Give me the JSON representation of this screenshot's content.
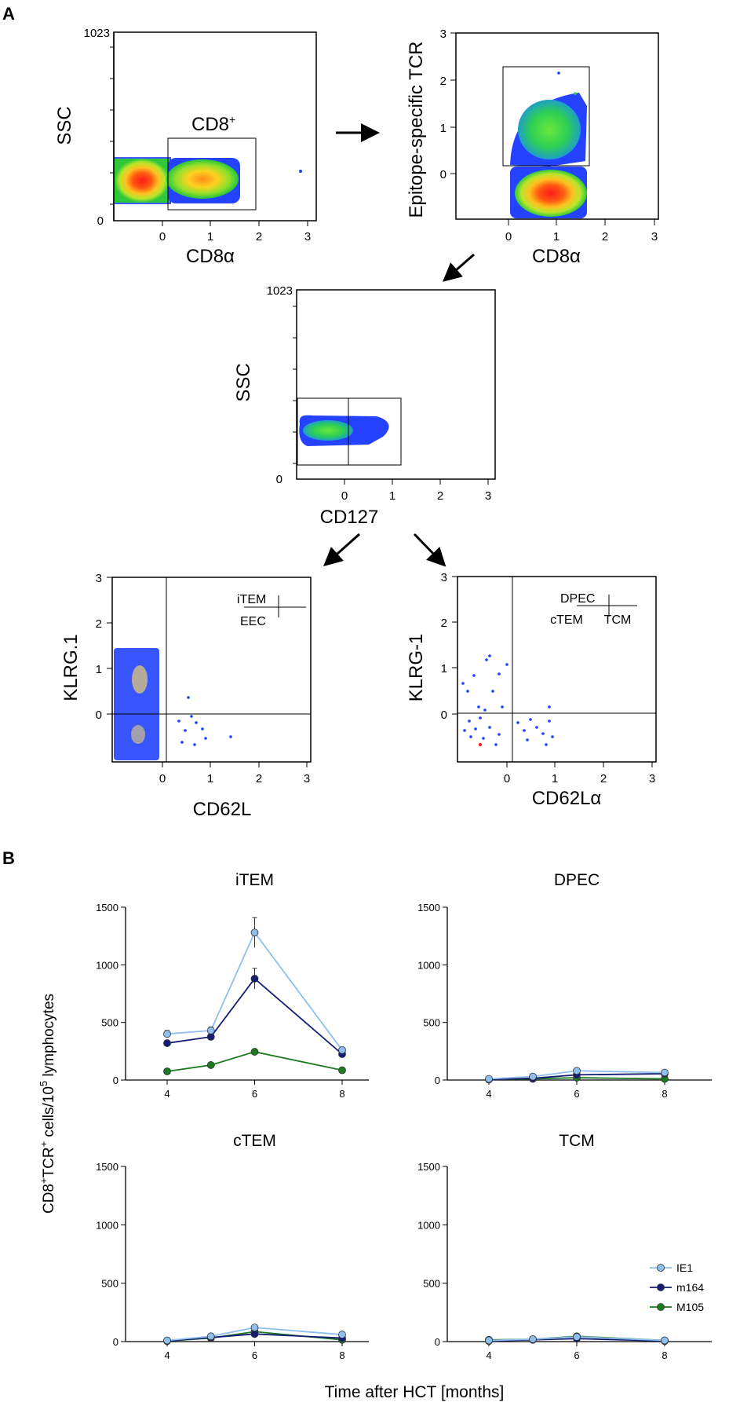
{
  "panel_labels": {
    "a": "A",
    "b": "B"
  },
  "flow": {
    "p1": {
      "ylabel": "SSC",
      "xlabel": "CD8α",
      "ytop": "1023",
      "ybottom": "0",
      "xticks": [
        "0",
        "1",
        "2",
        "3"
      ],
      "gate_label": "CD8",
      "gate_sup": "+"
    },
    "p2": {
      "ylabel": "Epitope-specific TCR",
      "xlabel": "CD8α",
      "yticks": [
        "3",
        "2",
        "1",
        "0"
      ],
      "xticks": [
        "0",
        "1",
        "2",
        "3"
      ]
    },
    "p3": {
      "ylabel": "SSC",
      "xlabel": "CD127",
      "ytop": "1023",
      "ybottom": "0",
      "xticks": [
        "0",
        "1",
        "2",
        "3"
      ]
    },
    "p4": {
      "ylabel": "KLRG.1",
      "xlabel": "CD62L",
      "yticks": [
        "3",
        "2",
        "1",
        "0"
      ],
      "xticks": [
        "0",
        "1",
        "2",
        "3"
      ],
      "q_top": "iTEM",
      "q_bottom": "EEC"
    },
    "p5": {
      "ylabel": "KLRG-1",
      "xlabel": "CD62Lα",
      "yticks": [
        "3",
        "2",
        "1",
        "0"
      ],
      "xticks": [
        "0",
        "1",
        "2",
        "3"
      ],
      "q_top": "DPEC",
      "q_bl": "cTEM",
      "q_br": "TCM"
    }
  },
  "chart_data": {
    "type": "line",
    "shared_ylabel": {
      "pre": "CD8",
      "sup1": "+",
      "mid": "TCR",
      "sup2": "+",
      "post": " cells/10",
      "sup3": "5",
      "tail": " lymphocytes"
    },
    "shared_xlabel": "Time after HCT [months]",
    "x": [
      4,
      5,
      6,
      8
    ],
    "xticks": [
      "4",
      "6",
      "8"
    ],
    "yticks": [
      "0",
      "500",
      "1000",
      "1500"
    ],
    "ylim": [
      0,
      1500
    ],
    "colors": {
      "IE1": "#8ebfee",
      "m164": "#141d73",
      "M105": "#1d7a22"
    },
    "legend": [
      "IE1",
      "m164",
      "M105"
    ],
    "subplots": [
      {
        "title": "iTEM",
        "series": [
          {
            "name": "IE1",
            "values": [
              400,
              430,
              1280,
              260
            ],
            "errors": [
              30,
              30,
              130,
              20
            ]
          },
          {
            "name": "m164",
            "values": [
              320,
              375,
              880,
              225
            ],
            "errors": [
              25,
              20,
              90,
              15
            ]
          },
          {
            "name": "M105",
            "values": [
              75,
              130,
              245,
              85
            ],
            "errors": [
              0,
              0,
              0,
              0
            ]
          }
        ]
      },
      {
        "title": "DPEC",
        "series": [
          {
            "name": "IE1",
            "values": [
              10,
              30,
              80,
              65
            ],
            "errors": [
              0,
              0,
              0,
              0
            ]
          },
          {
            "name": "m164",
            "values": [
              5,
              15,
              45,
              55
            ],
            "errors": [
              0,
              0,
              0,
              0
            ]
          },
          {
            "name": "M105",
            "values": [
              5,
              10,
              20,
              10
            ],
            "errors": [
              0,
              0,
              0,
              0
            ]
          }
        ]
      },
      {
        "title": "cTEM",
        "series": [
          {
            "name": "IE1",
            "values": [
              10,
              45,
              120,
              60
            ],
            "errors": [
              0,
              0,
              0,
              0
            ]
          },
          {
            "name": "m164",
            "values": [
              5,
              35,
              65,
              30
            ],
            "errors": [
              0,
              0,
              0,
              0
            ]
          },
          {
            "name": "M105",
            "values": [
              5,
              30,
              85,
              15
            ],
            "errors": [
              0,
              0,
              0,
              0
            ]
          }
        ]
      },
      {
        "title": "TCM",
        "series": [
          {
            "name": "IE1",
            "values": [
              10,
              20,
              40,
              10
            ],
            "errors": [
              0,
              0,
              0,
              0
            ]
          },
          {
            "name": "m164",
            "values": [
              5,
              15,
              25,
              5
            ],
            "errors": [
              0,
              0,
              0,
              0
            ]
          },
          {
            "name": "M105",
            "values": [
              15,
              20,
              45,
              10
            ],
            "errors": [
              0,
              0,
              0,
              0
            ]
          }
        ]
      }
    ]
  }
}
